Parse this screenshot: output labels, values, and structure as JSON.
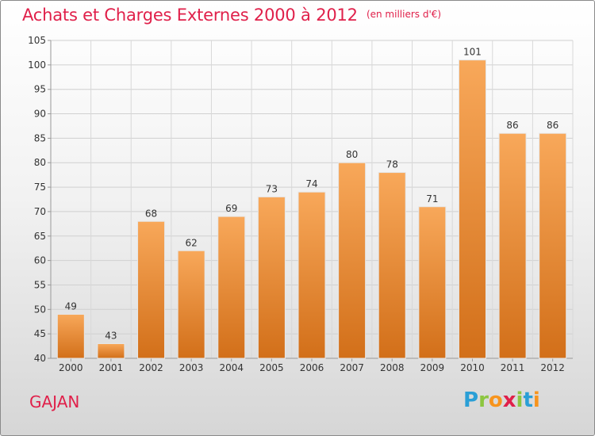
{
  "title": "Achats et Charges Externes 2000 à 2012",
  "unit": "(en milliers d'€)",
  "commune": "GAJAN",
  "logo": {
    "letters": [
      "P",
      "r",
      "o",
      "x",
      "i",
      "t",
      "i"
    ],
    "colors": [
      "#2a9fd6",
      "#8cc63f",
      "#f7941d",
      "#e0204a",
      "#8cc63f",
      "#2a9fd6",
      "#f7941d"
    ]
  },
  "colors": {
    "bar_light": "#f8a85a",
    "bar_dark": "#d26f19",
    "title": "#e0204a"
  },
  "chart_data": {
    "type": "bar",
    "categories": [
      "2000",
      "2001",
      "2002",
      "2003",
      "2004",
      "2005",
      "2006",
      "2007",
      "2008",
      "2009",
      "2010",
      "2011",
      "2012"
    ],
    "values": [
      49,
      43,
      68,
      62,
      69,
      73,
      74,
      80,
      78,
      71,
      101,
      86,
      86
    ],
    "ylim": [
      40,
      105
    ],
    "yticks": [
      40,
      45,
      50,
      55,
      60,
      65,
      70,
      75,
      80,
      85,
      90,
      95,
      100,
      105
    ],
    "grid": true
  }
}
